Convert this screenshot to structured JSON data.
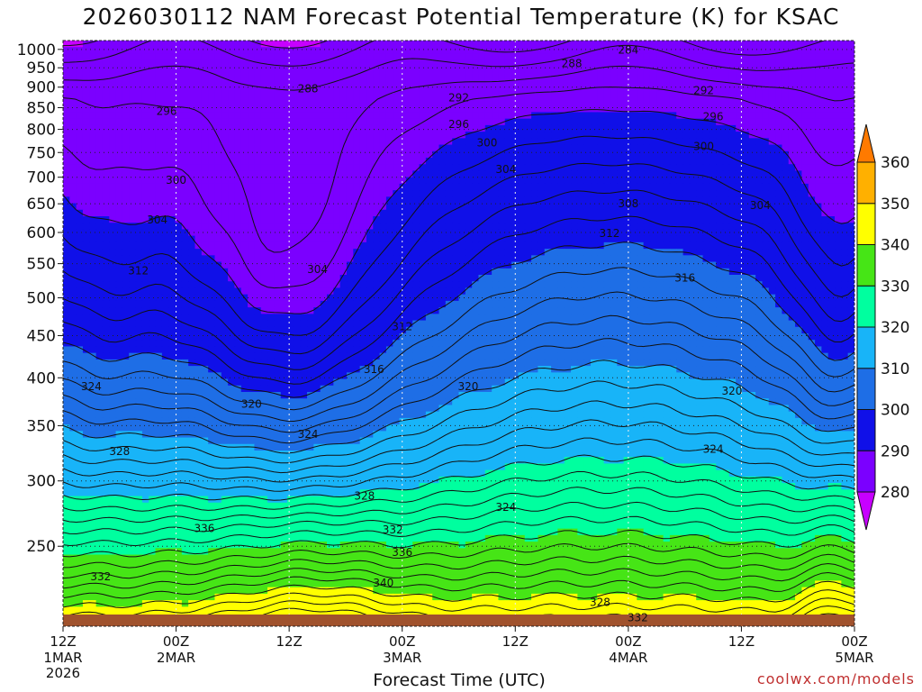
{
  "chart_data": {
    "type": "contour",
    "title": "2026030112 NAM Forecast Potential Temperature (K) for KSAC",
    "xlabel": "Forecast Time (UTC)",
    "ylabel": "",
    "x_ticks": [
      {
        "label": "12Z",
        "sub": [
          "1MAR",
          "2026"
        ],
        "hour": 0
      },
      {
        "label": "00Z",
        "sub": [
          "2MAR"
        ],
        "hour": 12
      },
      {
        "label": "12Z",
        "sub": [],
        "hour": 24
      },
      {
        "label": "00Z",
        "sub": [
          "3MAR"
        ],
        "hour": 36
      },
      {
        "label": "12Z",
        "sub": [],
        "hour": 48
      },
      {
        "label": "00Z",
        "sub": [
          "4MAR"
        ],
        "hour": 60
      },
      {
        "label": "12Z",
        "sub": [],
        "hour": 72
      },
      {
        "label": "00Z",
        "sub": [
          "5MAR"
        ],
        "hour": 84
      }
    ],
    "x_range_hours": [
      0,
      84
    ],
    "y_axis": "pressure (log scale, reversed)",
    "y_range": [
      1025,
      200
    ],
    "y_ticks": [
      250,
      300,
      350,
      400,
      450,
      500,
      550,
      600,
      650,
      700,
      750,
      800,
      850,
      900,
      950,
      1000
    ],
    "grid": true,
    "colorbar": {
      "levels": [
        280,
        290,
        300,
        310,
        320,
        330,
        340,
        350,
        360
      ],
      "colors": [
        "#c700ff",
        "#7b00ff",
        "#1010e8",
        "#1e6ee6",
        "#18b4f8",
        "#00ff9f",
        "#46e516",
        "#ffff00",
        "#ffb000",
        "#ff7a00"
      ]
    },
    "contour_interval": 2,
    "contour_labels": [
      {
        "value": "332",
        "hour": 4,
        "p": 230
      },
      {
        "value": "340",
        "hour": 34,
        "p": 226
      },
      {
        "value": "332",
        "hour": 61,
        "p": 205
      },
      {
        "value": "328",
        "hour": 57,
        "p": 214
      },
      {
        "value": "336",
        "hour": 15,
        "p": 263
      },
      {
        "value": "336",
        "hour": 36,
        "p": 246
      },
      {
        "value": "332",
        "hour": 35,
        "p": 262
      },
      {
        "value": "328",
        "hour": 32,
        "p": 288
      },
      {
        "value": "324",
        "hour": 47,
        "p": 279
      },
      {
        "value": "328",
        "hour": 6,
        "p": 326
      },
      {
        "value": "324",
        "hour": 26,
        "p": 342
      },
      {
        "value": "324",
        "hour": 69,
        "p": 328
      },
      {
        "value": "320",
        "hour": 20,
        "p": 372
      },
      {
        "value": "320",
        "hour": 43,
        "p": 391
      },
      {
        "value": "320",
        "hour": 71,
        "p": 386
      },
      {
        "value": "324",
        "hour": 3,
        "p": 391
      },
      {
        "value": "316",
        "hour": 33,
        "p": 410
      },
      {
        "value": "312",
        "hour": 36,
        "p": 462
      },
      {
        "value": "316",
        "hour": 66,
        "p": 529
      },
      {
        "value": "312",
        "hour": 8,
        "p": 540
      },
      {
        "value": "304",
        "hour": 27,
        "p": 542
      },
      {
        "value": "312",
        "hour": 58,
        "p": 599
      },
      {
        "value": "304",
        "hour": 10,
        "p": 622
      },
      {
        "value": "308",
        "hour": 60,
        "p": 651
      },
      {
        "value": "304",
        "hour": 74,
        "p": 648
      },
      {
        "value": "300",
        "hour": 12,
        "p": 695
      },
      {
        "value": "304",
        "hour": 47,
        "p": 716
      },
      {
        "value": "300",
        "hour": 45,
        "p": 772
      },
      {
        "value": "300",
        "hour": 68,
        "p": 764
      },
      {
        "value": "296",
        "hour": 42,
        "p": 812
      },
      {
        "value": "296",
        "hour": 69,
        "p": 830
      },
      {
        "value": "296",
        "hour": 11,
        "p": 842
      },
      {
        "value": "292",
        "hour": 42,
        "p": 875
      },
      {
        "value": "292",
        "hour": 68,
        "p": 893
      },
      {
        "value": "288",
        "hour": 26,
        "p": 897
      },
      {
        "value": "288",
        "hour": 54,
        "p": 963
      },
      {
        "value": "284",
        "hour": 60,
        "p": 1000
      }
    ]
  },
  "credit": "coolwx.com/models"
}
